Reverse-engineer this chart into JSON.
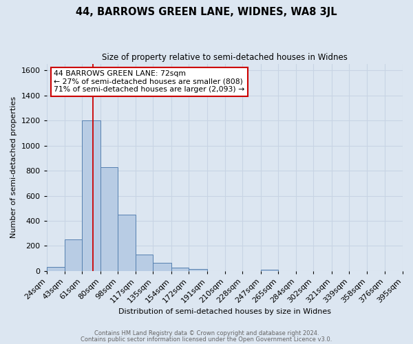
{
  "title": "44, BARROWS GREEN LANE, WIDNES, WA8 3JL",
  "subtitle": "Size of property relative to semi-detached houses in Widnes",
  "xlabel": "Distribution of semi-detached houses by size in Widnes",
  "ylabel": "Number of semi-detached properties",
  "bin_labels": [
    "24sqm",
    "43sqm",
    "61sqm",
    "80sqm",
    "98sqm",
    "117sqm",
    "135sqm",
    "154sqm",
    "172sqm",
    "191sqm",
    "210sqm",
    "228sqm",
    "247sqm",
    "265sqm",
    "284sqm",
    "302sqm",
    "321sqm",
    "339sqm",
    "358sqm",
    "376sqm",
    "395sqm"
  ],
  "bin_edges": [
    24,
    43,
    61,
    80,
    98,
    117,
    135,
    154,
    172,
    191,
    210,
    228,
    247,
    265,
    284,
    302,
    321,
    339,
    358,
    376,
    395
  ],
  "bar_heights": [
    30,
    250,
    1200,
    830,
    450,
    130,
    65,
    25,
    15,
    0,
    0,
    0,
    10,
    0,
    0,
    0,
    0,
    0,
    0,
    0,
    0
  ],
  "bar_color": "#b8cce4",
  "bar_edge_color": "#5580b0",
  "grid_color": "#c8d4e4",
  "background_color": "#dce6f1",
  "red_line_x": 72,
  "annotation_title": "44 BARROWS GREEN LANE: 72sqm",
  "annotation_line1": "← 27% of semi-detached houses are smaller (808)",
  "annotation_line2": "71% of semi-detached houses are larger (2,093) →",
  "annotation_box_color": "#ffffff",
  "annotation_border_color": "#cc0000",
  "red_line_color": "#cc0000",
  "ylim": [
    0,
    1650
  ],
  "yticks": [
    0,
    200,
    400,
    600,
    800,
    1000,
    1200,
    1400,
    1600
  ],
  "footer1": "Contains HM Land Registry data © Crown copyright and database right 2024.",
  "footer2": "Contains public sector information licensed under the Open Government Licence v3.0."
}
